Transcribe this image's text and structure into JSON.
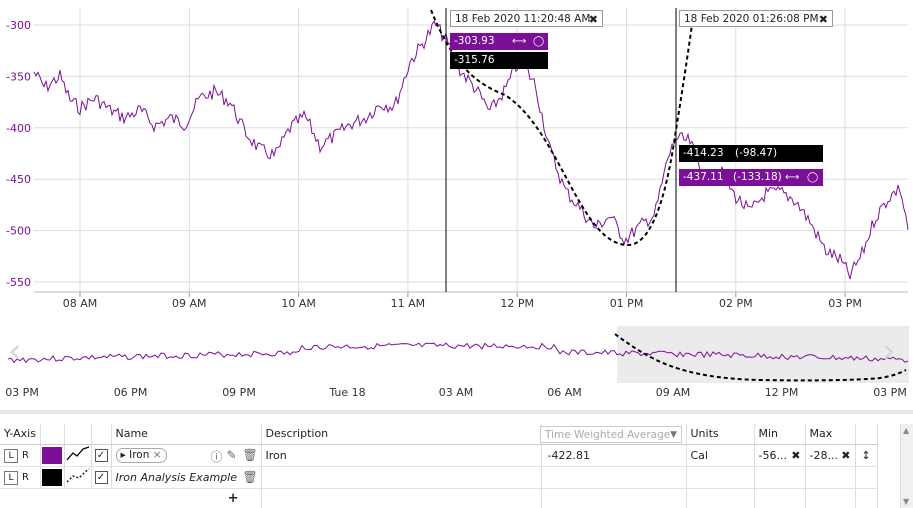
{
  "chart": {
    "colors": {
      "iron": "#7B0F98",
      "analysis": "#000000",
      "grid": "#dddddd",
      "axis_text": "#7B0F98",
      "time_text": "#333333"
    },
    "y_ticks": [
      "-300",
      "-350",
      "-400",
      "-450",
      "-500",
      "-550"
    ],
    "x_ticks": [
      "08 AM",
      "09 AM",
      "10 AM",
      "11 AM",
      "12 PM",
      "01 PM",
      "02 PM",
      "03 PM"
    ],
    "nav_ticks": [
      "03 PM",
      "06 PM",
      "09 PM",
      "Tue 18",
      "03 AM",
      "06 AM",
      "09 AM",
      "12 PM",
      "03 PM"
    ],
    "cursor1": {
      "time": "18 Feb 2020 11:20:48 AM",
      "close": "✖",
      "value_iron": "-303.93",
      "value_analysis": "-315.76"
    },
    "cursor2": {
      "time": "18 Feb 2020 01:26:08 PM",
      "close": "✖",
      "value_analysis": "-414.23",
      "delta_analysis": "(-98.47)",
      "value_iron": "-437.11",
      "delta_iron": "(-133.18)"
    },
    "icons": {
      "range": "⟷",
      "comment": "speech-bubble-icon",
      "nav_left": "‹",
      "nav_right": "›"
    }
  },
  "details": {
    "headers": {
      "y_axis": "Y-Axis",
      "name": "Name",
      "description": "Description",
      "units": "Units",
      "min": "Min",
      "max": "Max"
    },
    "stat_placeholder": "Time Weighted Average",
    "rows": [
      {
        "axis_l": "L",
        "axis_r": "R",
        "color": "#7B0F98",
        "name": "Iron",
        "chip_close": "×",
        "description": "Iron",
        "stat": "-422.81",
        "units": "Cal",
        "min": "-56...",
        "max": "-28..."
      },
      {
        "axis_l": "L",
        "axis_r": "R",
        "color": "#000000",
        "name": "Iron Analysis Example"
      }
    ],
    "add_label": "+"
  }
}
